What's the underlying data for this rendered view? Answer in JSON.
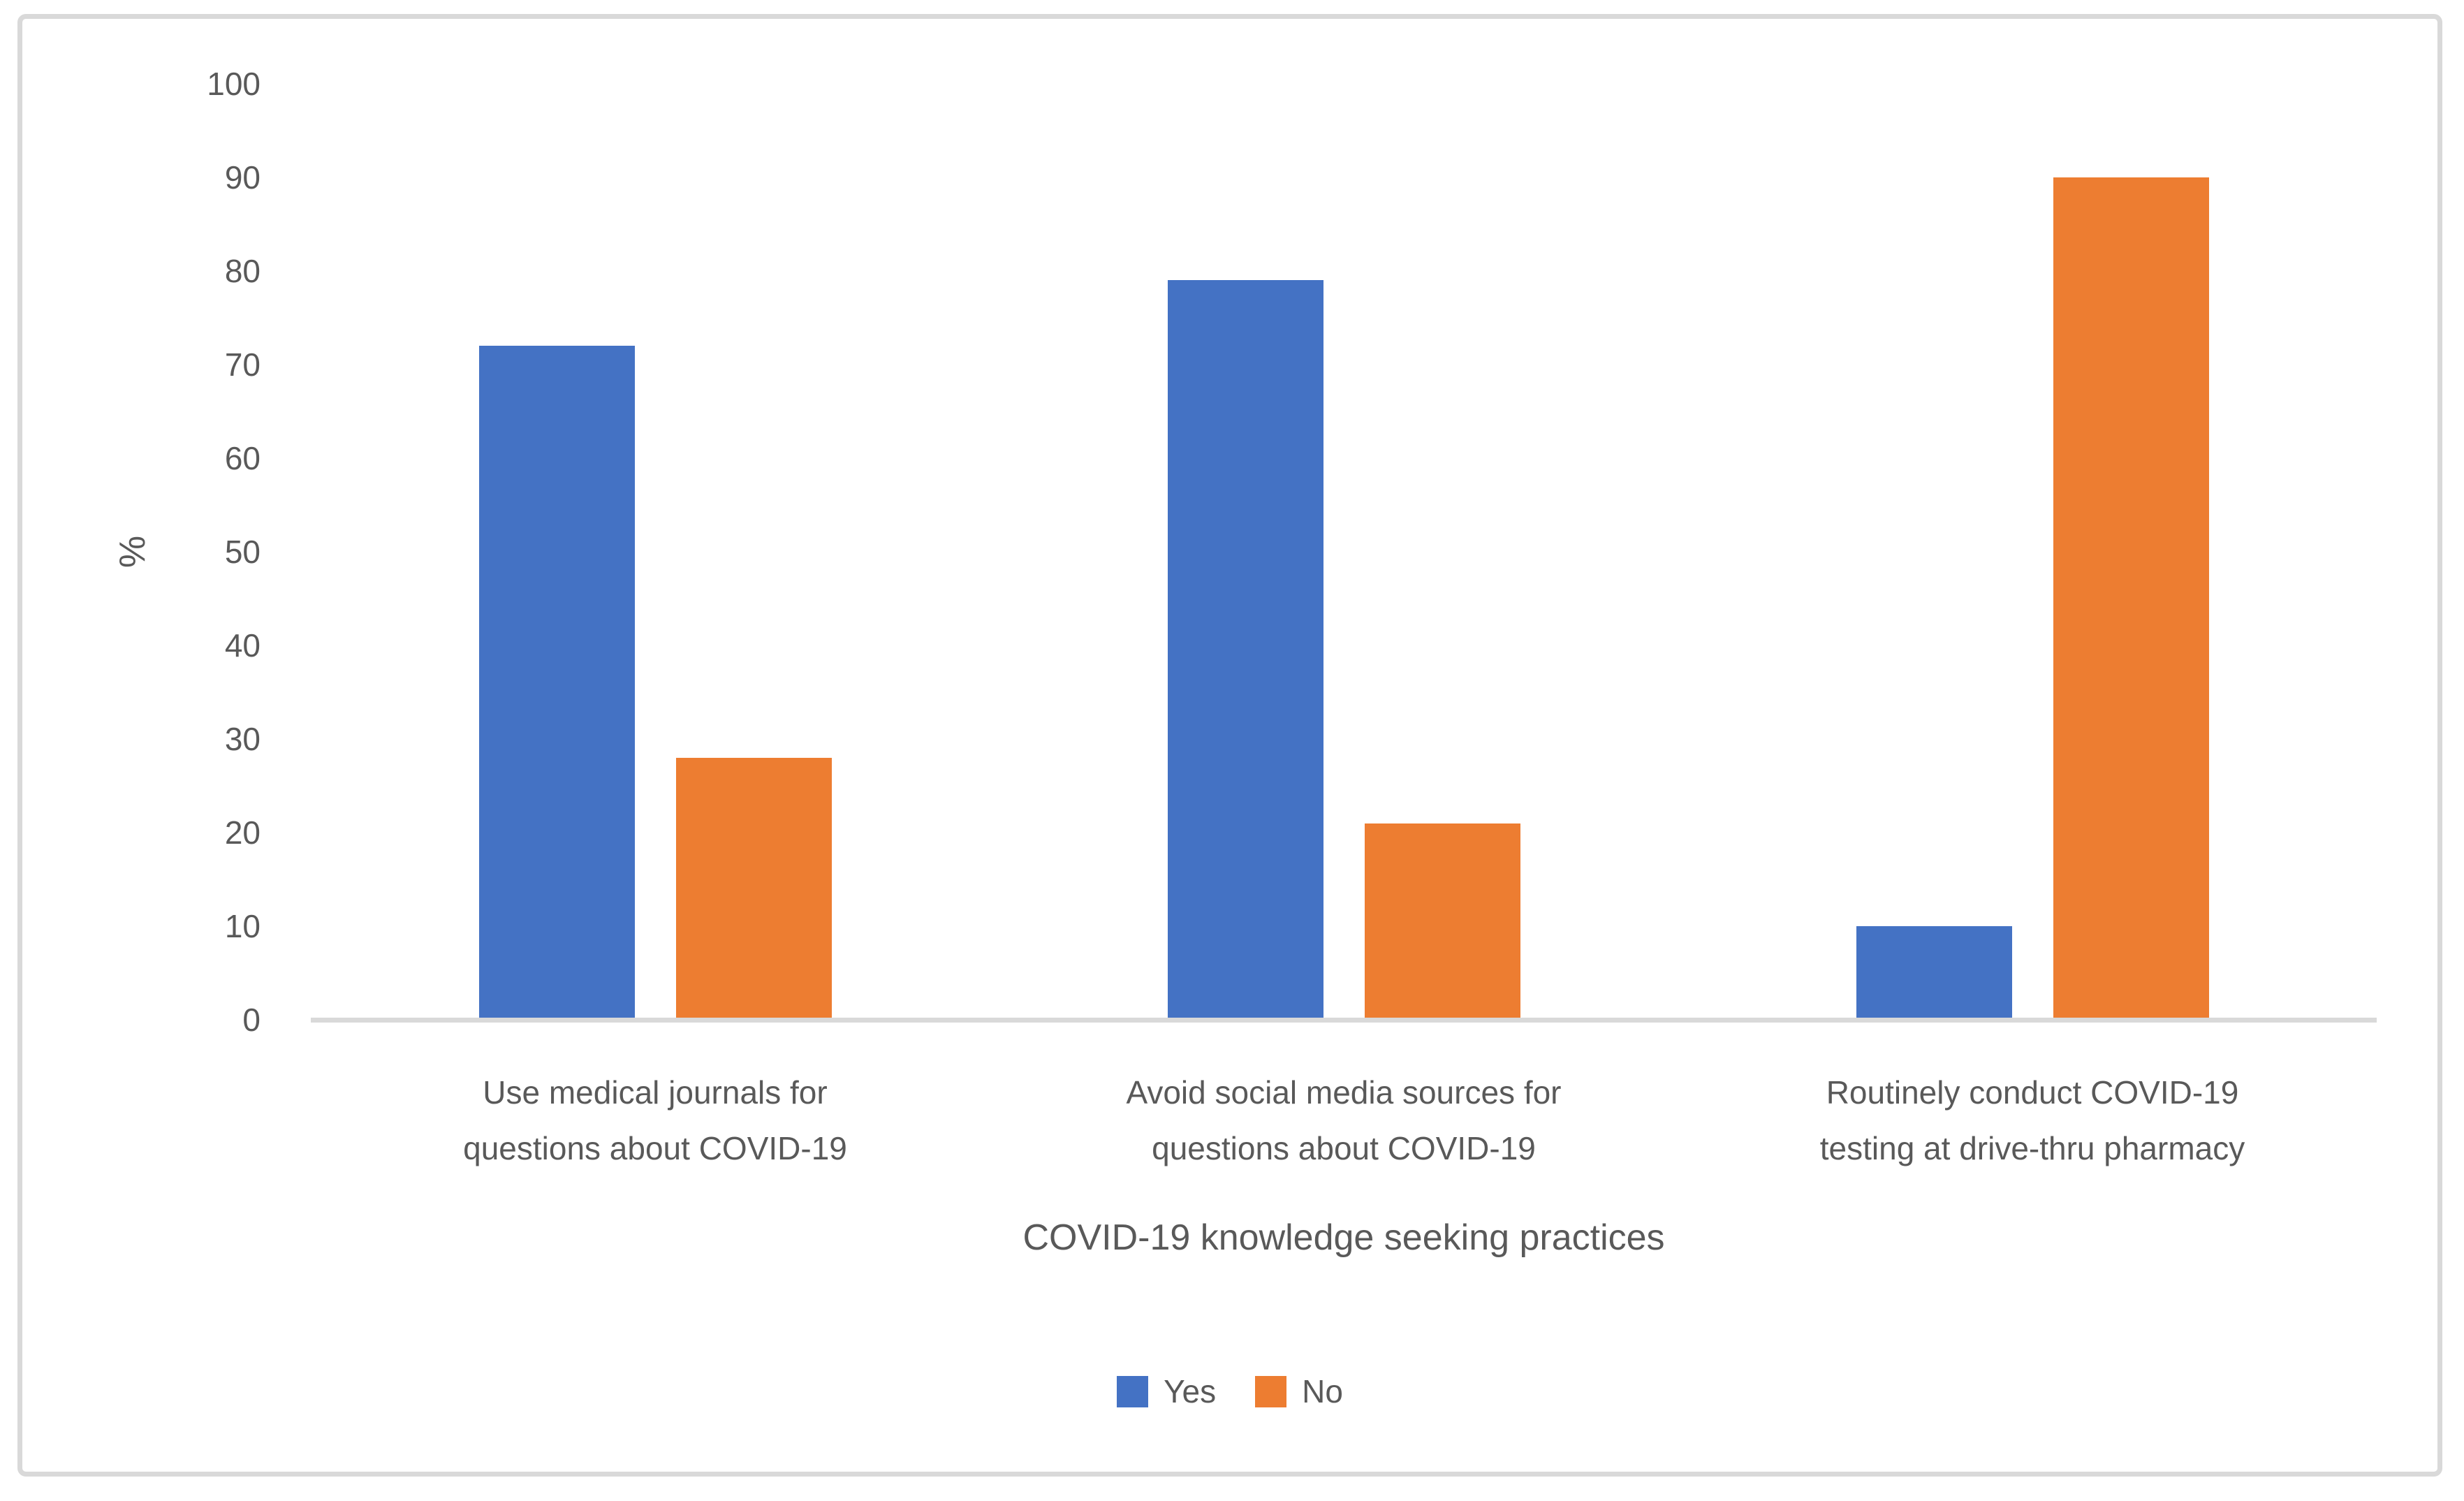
{
  "figure": {
    "background_color": "#ffffff",
    "border_color": "#d9d9d9",
    "text_color": "#595959"
  },
  "chart_data": {
    "type": "bar",
    "title": "",
    "xlabel": "COVID-19 knowledge seeking practices",
    "ylabel": "%",
    "ylim": [
      0,
      100
    ],
    "ytick_step": 10,
    "yticks": [
      "0",
      "10",
      "20",
      "30",
      "40",
      "50",
      "60",
      "70",
      "80",
      "90",
      "100"
    ],
    "grid": false,
    "legend_position": "bottom-center",
    "axis_line_color": "#d9d9d9",
    "categories": [
      "Use medical journals for questions about COVID-19",
      "Avoid social media sources for questions about COVID-19",
      "Routinely conduct COVID-19 testing at drive-thru pharmacy"
    ],
    "category_lines": [
      [
        "Use medical journals for",
        "questions about COVID-19"
      ],
      [
        "Avoid social media sources for",
        "questions about COVID-19"
      ],
      [
        "Routinely conduct COVID-19",
        "testing at drive-thru pharmacy"
      ]
    ],
    "series": [
      {
        "name": "Yes",
        "color": "#4472C4",
        "values": [
          72,
          79,
          10
        ]
      },
      {
        "name": "No",
        "color": "#ED7D31",
        "values": [
          28,
          21,
          90
        ]
      }
    ]
  }
}
